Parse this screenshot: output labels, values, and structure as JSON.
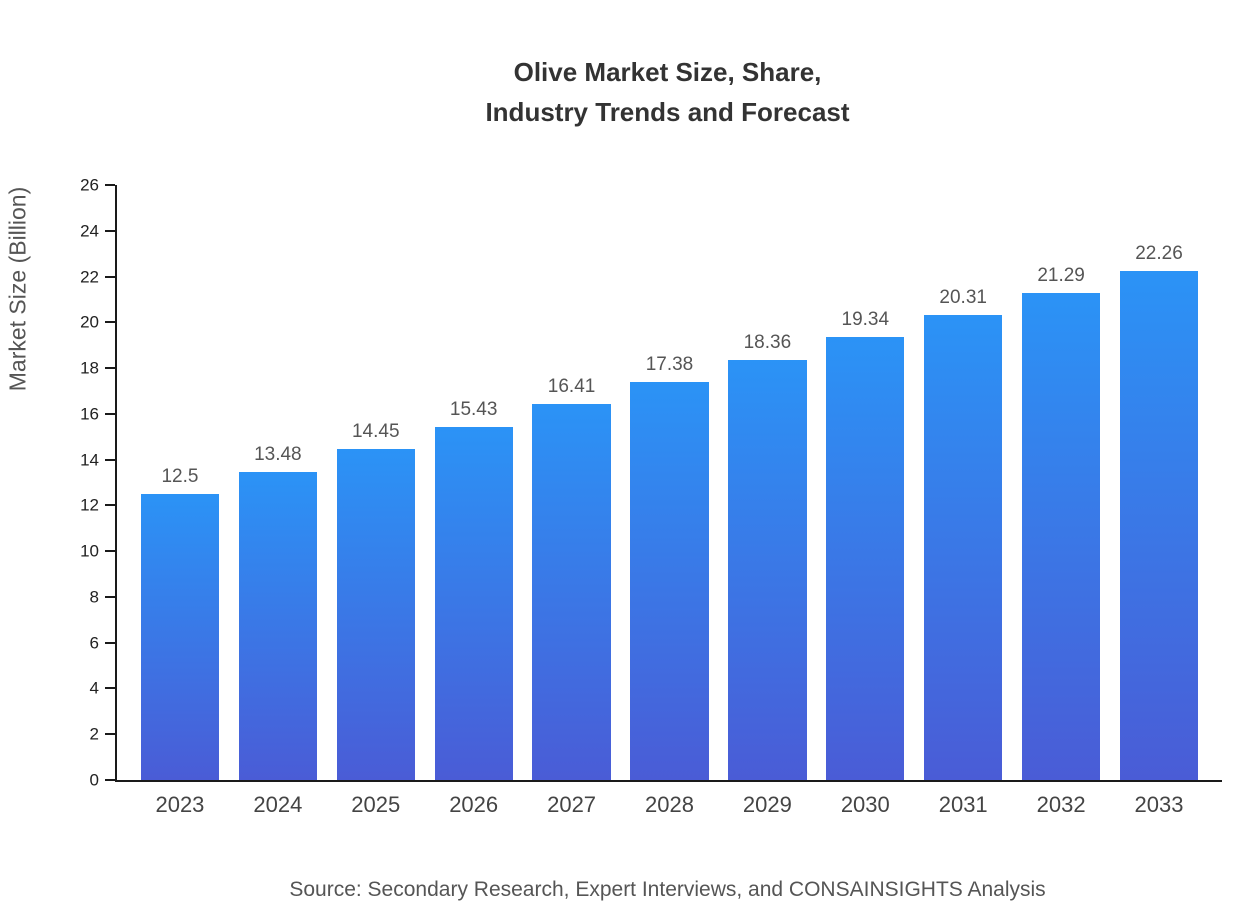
{
  "title": {
    "line1": "Olive Market Size, Share,",
    "line2": "Industry Trends and Forecast"
  },
  "chart_data": {
    "type": "bar",
    "title": "Olive Market Size, Share, Industry Trends and Forecast",
    "categories": [
      "2023",
      "2024",
      "2025",
      "2026",
      "2027",
      "2028",
      "2029",
      "2030",
      "2031",
      "2032",
      "2033"
    ],
    "values": [
      12.5,
      13.48,
      14.45,
      15.43,
      16.41,
      17.38,
      18.36,
      19.34,
      20.31,
      21.29,
      22.26
    ],
    "xlabel": "",
    "ylabel": "Market Size (Billion)",
    "ylim": [
      0,
      26
    ],
    "ytick_step": 2,
    "grid": false,
    "legend": false,
    "colors": {
      "bar_gradient_top": "#2b93f6",
      "bar_gradient_bottom": "#4a5cd6",
      "axis": "#1a1a1a",
      "value_label": "#555555",
      "tick_label": "#222222",
      "title": "#333333"
    }
  },
  "source": "Source: Secondary Research, Expert Interviews, and CONSAINSIGHTS Analysis"
}
